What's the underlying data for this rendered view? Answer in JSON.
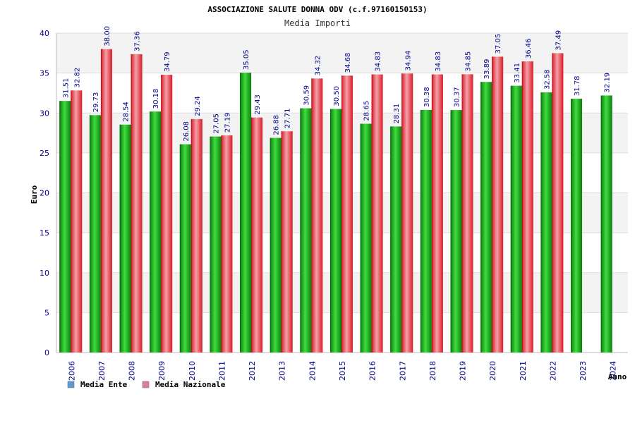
{
  "chart_data": {
    "type": "bar",
    "title": "ASSOCIAZIONE SALUTE DONNA ODV (c.f.97160150153)",
    "subtitle": "Media Importi",
    "ylabel": "Euro",
    "xlabel": "Anno",
    "ylim": [
      0,
      40
    ],
    "yticks": [
      "0",
      "5",
      "10",
      "15",
      "20",
      "25",
      "30",
      "35",
      "40"
    ],
    "grid": true,
    "legend_position": "bottom-left",
    "categories": [
      "2006",
      "2007",
      "2008",
      "2009",
      "2010",
      "2011",
      "2012",
      "2013",
      "2014",
      "2015",
      "2016",
      "2017",
      "2018",
      "2019",
      "2020",
      "2021",
      "2022",
      "2023",
      "2024"
    ],
    "series": [
      {
        "name": "Media Ente",
        "color": "#1aa51a",
        "legend_color": "#5b9bd5",
        "values": [
          31.51,
          29.73,
          28.54,
          30.18,
          26.08,
          27.05,
          35.05,
          26.88,
          30.59,
          30.5,
          28.65,
          28.31,
          30.38,
          30.37,
          33.89,
          33.41,
          32.58,
          31.78,
          32.19
        ],
        "labels": [
          "31.51",
          "29.73",
          "28.54",
          "30.18",
          "26.08",
          "27.05",
          "35.05",
          "26.88",
          "30.59",
          "30.50",
          "28.65",
          "28.31",
          "30.38",
          "30.37",
          "33.89",
          "33.41",
          "32.58",
          "31.78",
          "32.19"
        ]
      },
      {
        "name": "Media Nazionale",
        "color": "#e8303a",
        "legend_color": "#e07aa8",
        "values": [
          32.82,
          38.0,
          37.36,
          34.79,
          29.24,
          27.19,
          29.43,
          27.71,
          34.32,
          34.68,
          34.83,
          34.94,
          34.83,
          34.85,
          37.05,
          36.46,
          37.49,
          null,
          null
        ],
        "labels": [
          "32.82",
          "38.00",
          "37.36",
          "34.79",
          "29.24",
          "27.19",
          "29.43",
          "27.71",
          "34.32",
          "34.68",
          "34.83",
          "34.94",
          "34.83",
          "34.85",
          "37.05",
          "36.46",
          "37.49",
          "",
          ""
        ]
      }
    ]
  }
}
